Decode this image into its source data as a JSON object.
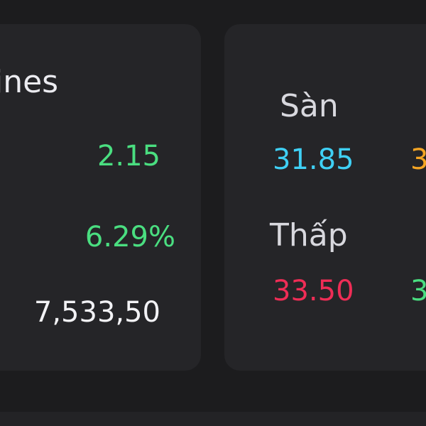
{
  "left_card": {
    "title_partial": "ines",
    "change": "2.15",
    "change_percent": "6.29%",
    "volume": "7,533,50"
  },
  "right_card": {
    "san_label": "Sàn",
    "san_value": "31.85",
    "tc_value_partial": "3",
    "thap_label": "Thấp",
    "thap_value": "33.50",
    "cao_value_partial": "3"
  },
  "colors": {
    "background": "#1c1c1e",
    "card": "#252528",
    "up_green": "#4ade80",
    "floor_cyan": "#3fd0f5",
    "ref_yellow": "#f5a524",
    "down_red": "#ef2d56",
    "label_gray": "#d8d8de"
  }
}
